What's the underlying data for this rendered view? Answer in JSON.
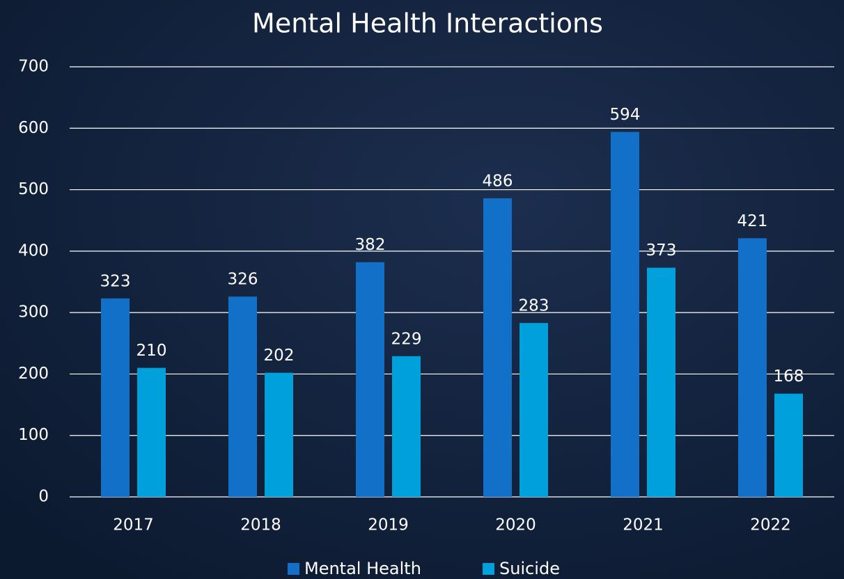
{
  "chart_data": {
    "type": "bar",
    "title": "Mental Health Interactions",
    "categories": [
      "2017",
      "2018",
      "2019",
      "2020",
      "2021",
      "2022"
    ],
    "series": [
      {
        "name": "Mental Health",
        "color": "#1270c9",
        "values": [
          323,
          326,
          382,
          486,
          594,
          421
        ]
      },
      {
        "name": "Suicide",
        "color": "#00a0dc",
        "values": [
          210,
          202,
          229,
          283,
          373,
          168
        ]
      }
    ],
    "ylim": [
      0,
      700
    ],
    "yticks": [
      0,
      100,
      200,
      300,
      400,
      500,
      600,
      700
    ],
    "grid": true,
    "legend": "bottom"
  }
}
